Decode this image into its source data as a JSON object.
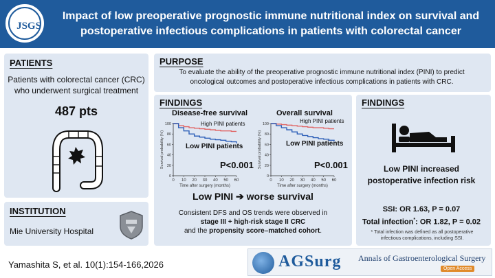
{
  "header": {
    "logo_text": "JSGS",
    "title_line1": "Impact of low preoperative prognostic immune nutritional index on survival and",
    "title_line2": "postoperative infectious complications in patients with colorectal cancer"
  },
  "patients": {
    "heading": "PATIENTS",
    "line1": "Patients with colorectal cancer (CRC)",
    "line2": "who underwent surgical treatment",
    "count": "487 pts"
  },
  "purpose": {
    "heading": "PURPOSE",
    "line1": "To evaluate the ability of the preoperative prognostic immune nutritional index (PINI) to predict",
    "line2": "oncological outcomes and postoperative infectious complications in patients with CRC."
  },
  "findings_survival": {
    "heading": "FINDINGS",
    "summary": "Low PINI ➔ worse survival",
    "detail_line1": "Consistent DFS and OS trends were observed in",
    "detail_line2": "stage III + high-risk stage II CRC",
    "detail_line3_pre": "and the ",
    "detail_line3_bold": "propensity score–matched cohort",
    "detail_line3_post": "."
  },
  "chart_data": [
    {
      "type": "line",
      "title": "Disease-free survival",
      "xlabel": "Time after surgery (months)",
      "ylabel": "Survival probability (%)",
      "xlim": [
        0,
        60
      ],
      "ylim": [
        0,
        100
      ],
      "xticks": [
        0,
        10,
        20,
        30,
        40,
        50,
        60
      ],
      "yticks": [
        0,
        20,
        40,
        60,
        80,
        100
      ],
      "annotation": "P<0.001",
      "series": [
        {
          "name": "High PINI patients",
          "color": "#e06666",
          "x": [
            0,
            5,
            10,
            15,
            20,
            25,
            30,
            35,
            40,
            45,
            50,
            55,
            60
          ],
          "y": [
            100,
            96,
            94,
            92,
            91,
            90,
            89,
            88,
            87,
            86,
            86,
            85,
            85
          ]
        },
        {
          "name": "Low PINI patients",
          "color": "#2d5fb8",
          "x": [
            0,
            5,
            10,
            15,
            20,
            25,
            30,
            35,
            40,
            45,
            50,
            55,
            60
          ],
          "y": [
            100,
            92,
            86,
            80,
            76,
            74,
            72,
            70,
            69,
            68,
            66,
            65,
            62
          ]
        }
      ]
    },
    {
      "type": "line",
      "title": "Overall survival",
      "xlabel": "Time after surgery (months)",
      "ylabel": "Survival probability (%)",
      "xlim": [
        0,
        60
      ],
      "ylim": [
        0,
        100
      ],
      "xticks": [
        0,
        10,
        20,
        30,
        40,
        50,
        60
      ],
      "yticks": [
        0,
        20,
        40,
        60,
        80,
        100
      ],
      "annotation": "P<0.001",
      "series": [
        {
          "name": "High PINI patients",
          "color": "#e06666",
          "x": [
            0,
            5,
            10,
            15,
            20,
            25,
            30,
            35,
            40,
            45,
            50,
            55,
            60
          ],
          "y": [
            100,
            99,
            98,
            97,
            96,
            95,
            94,
            93,
            92,
            92,
            91,
            90,
            90
          ]
        },
        {
          "name": "Low PINI patients",
          "color": "#2d5fb8",
          "x": [
            0,
            5,
            10,
            15,
            20,
            25,
            30,
            35,
            40,
            45,
            50,
            55,
            60
          ],
          "y": [
            100,
            96,
            92,
            88,
            84,
            80,
            77,
            75,
            73,
            71,
            70,
            68,
            66
          ]
        }
      ]
    }
  ],
  "findings_infection": {
    "heading": "FINDINGS",
    "main_line1": "Low PINI increased",
    "main_line2": "postoperative infection risk",
    "ssi": "SSI: OR 1.63, P = 0.07",
    "total_pre": "Total infection",
    "total_sup": "*",
    "total_post": ": OR 1.82, P = 0.02",
    "note_line1": "* Total infection was defined as all postoperative",
    "note_line2": "infectious complications, including SSI."
  },
  "institution": {
    "heading": "INSTITUTION",
    "name": "Mie University Hospital"
  },
  "citation": "Yamashita S, et al. 10(1):154-166,2026",
  "journal": {
    "acronym": "AGSurg",
    "name": "Annals of Gastroenterological Surgery",
    "badge": "Open Access"
  },
  "colors": {
    "header": "#1f5b9c",
    "panel": "#dfe7f2",
    "high_pini": "#e06666",
    "low_pini": "#2d5fb8"
  }
}
